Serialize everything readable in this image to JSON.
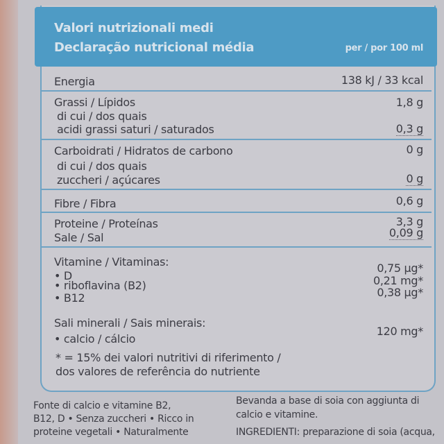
{
  "header": {
    "title_it": "Valori nutrizionali medi",
    "title_pt": "Declaração nutricional média",
    "per": "per / por 100 ml"
  },
  "rows": {
    "energia": {
      "label": "Energia",
      "value": "138 kJ / 33 kcal"
    },
    "grassi": {
      "label": "Grassi / Lípidos",
      "value": "1,8 g"
    },
    "grassi_dicui": {
      "label": "di cui / dos quais"
    },
    "saturi": {
      "label": "acidi grassi saturi / saturados",
      "value": "0,3 g"
    },
    "carbo": {
      "label": "Carboidrati / Hidratos de carbono",
      "value": "0 g"
    },
    "carbo_dicui": {
      "label": "di cui / dos quais"
    },
    "zuccheri": {
      "label": "zuccheri / açúcares",
      "value": "0 g"
    },
    "fibre": {
      "label": "Fibre / Fibra",
      "value": "0,6 g"
    },
    "proteine": {
      "label": "Proteine / Proteínas",
      "value": "3,3 g"
    },
    "sale": {
      "label": "Sale / Sal",
      "value": "0,09 g"
    },
    "vitamine": {
      "label": "Vitamine / Vitaminas:"
    },
    "vit_d": {
      "label": "• D",
      "value": "0,75 µg*"
    },
    "vit_b2": {
      "label": "• riboflavina (B2)",
      "value": "0,21 mg*"
    },
    "vit_b12": {
      "label": "• B12",
      "value": "0,38 µg*"
    },
    "sali": {
      "label": "Sali minerali / Sais minerais:"
    },
    "calcio": {
      "label": "• calcio / cálcio",
      "value": "120 mg*"
    }
  },
  "footnote": {
    "line1": "* = 15% dei valori nutritivi di riferimento /",
    "line2": "dos valores de referência do nutriente"
  },
  "bottom": {
    "left": [
      "Fonte di calcio e vitamine B2,",
      "B12, D • Senza zuccheri • Ricco in",
      "proteine vegetali • Naturalmente"
    ],
    "right": [
      "Bevanda a base di soia con aggiunta di",
      "calcio e vitamine.",
      "INGREDIENTI: preparazione di soia (acqua,"
    ]
  }
}
